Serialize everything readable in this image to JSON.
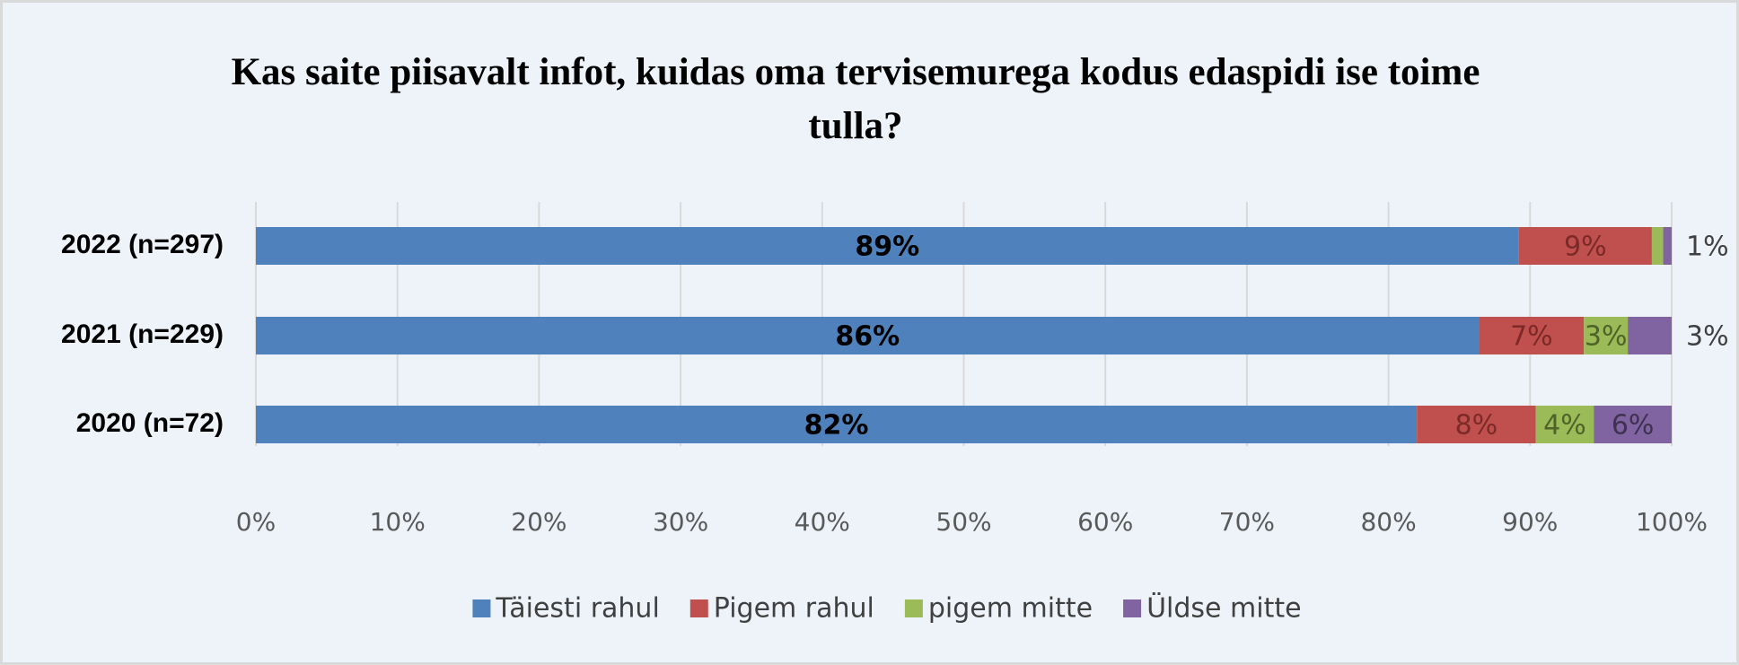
{
  "chart_data": {
    "type": "stacked-bar-horizontal",
    "title": "Kas saite piisavalt  infot, kuidas oma tervisemurega kodus edaspidi ise toime tulla?",
    "categories": [
      "2022 (n=297)",
      "2021 (n=229)",
      "2020 (n=72)"
    ],
    "series": [
      {
        "name": "Täiesti rahul",
        "color": "#4f81bd",
        "values": [
          89.2,
          86.4,
          82.0
        ],
        "value_labels": [
          "89%",
          "86%",
          "82%"
        ]
      },
      {
        "name": "Pigem rahul",
        "color": "#c0504d",
        "values": [
          9.4,
          7.4,
          8.4
        ],
        "value_labels": [
          "9%",
          "7%",
          "8%"
        ]
      },
      {
        "name": "pigem mitte",
        "color": "#9bbb59",
        "values": [
          0.8,
          3.1,
          4.1
        ],
        "value_labels": [
          null,
          "3%",
          "4%"
        ]
      },
      {
        "name": "Üldse mitte",
        "color": "#8064a2",
        "values": [
          0.6,
          3.1,
          5.5
        ],
        "value_labels": [
          "1%",
          "3%",
          "6%"
        ]
      }
    ],
    "xlim": [
      0,
      100
    ],
    "xticks": [
      {
        "value": 0,
        "label": "0%"
      },
      {
        "value": 10,
        "label": "10%"
      },
      {
        "value": 20,
        "label": "20%"
      },
      {
        "value": 30,
        "label": "30%"
      },
      {
        "value": 40,
        "label": "40%"
      },
      {
        "value": 50,
        "label": "50%"
      },
      {
        "value": 60,
        "label": "60%"
      },
      {
        "value": 70,
        "label": "70%"
      },
      {
        "value": 80,
        "label": "80%"
      },
      {
        "value": 90,
        "label": "90%"
      },
      {
        "value": 100,
        "label": "100%"
      }
    ],
    "grid": true,
    "legend": "bottom"
  }
}
